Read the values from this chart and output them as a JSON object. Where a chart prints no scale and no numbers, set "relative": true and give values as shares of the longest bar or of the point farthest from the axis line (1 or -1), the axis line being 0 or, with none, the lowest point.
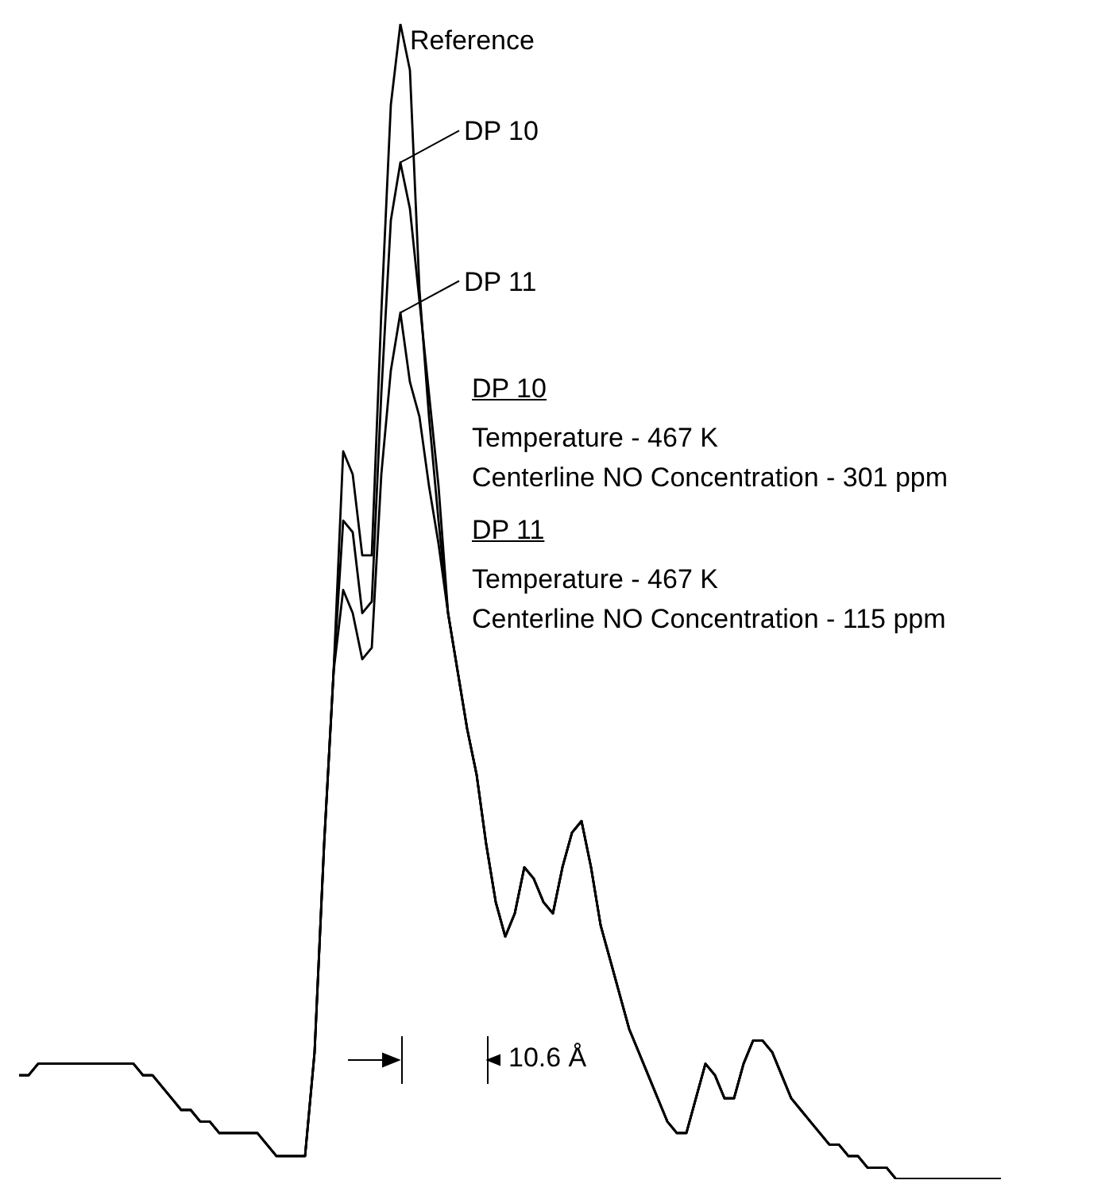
{
  "chart_data": {
    "type": "line",
    "relative": true,
    "categories": [
      null,
      null,
      null,
      null,
      null,
      null,
      null,
      null,
      null,
      null,
      null,
      null,
      null,
      null,
      null,
      null,
      null,
      null,
      null,
      null,
      null,
      null,
      null,
      null,
      null,
      null,
      null,
      null,
      null,
      null,
      null,
      null,
      null,
      null,
      null,
      null,
      null,
      null,
      null,
      null,
      null,
      null,
      null,
      null,
      null,
      null,
      null,
      null,
      null,
      null,
      null,
      null,
      null,
      null,
      null,
      null,
      null,
      null,
      null,
      null,
      null,
      null,
      null,
      null,
      null,
      null,
      null,
      null,
      null,
      null,
      null,
      null,
      null,
      null,
      null,
      null,
      null,
      null,
      null,
      null,
      null,
      null,
      null,
      null,
      null,
      null,
      null,
      null,
      null,
      null,
      null,
      null,
      null,
      null,
      null,
      null,
      null,
      null,
      null,
      null,
      null,
      null,
      null,
      null
    ],
    "series": [
      {
        "name": "Reference",
        "color": "#000000",
        "values": [
          0.09,
          0.09,
          0.1,
          0.1,
          0.1,
          0.1,
          0.1,
          0.1,
          0.1,
          0.1,
          0.1,
          0.1,
          0.1,
          0.09,
          0.09,
          0.08,
          0.07,
          0.06,
          0.06,
          0.05,
          0.05,
          0.04,
          0.04,
          0.04,
          0.04,
          0.04,
          0.03,
          0.02,
          0.02,
          0.02,
          0.02,
          0.11,
          0.29,
          0.44,
          0.63,
          0.61,
          0.54,
          0.54,
          0.75,
          0.93,
          1.0,
          0.96,
          0.77,
          0.66,
          0.57,
          0.49,
          0.44,
          0.39,
          0.35,
          0.29,
          0.24,
          0.21,
          0.23,
          0.27,
          0.26,
          0.24,
          0.23,
          0.27,
          0.3,
          0.31,
          0.27,
          0.22,
          0.19,
          0.16,
          0.13,
          0.11,
          0.09,
          0.07,
          0.05,
          0.04,
          0.04,
          0.07,
          0.1,
          0.09,
          0.07,
          0.07,
          0.1,
          0.12,
          0.12,
          0.11,
          0.09,
          0.07,
          0.06,
          0.05,
          0.04,
          0.03,
          0.03,
          0.02,
          0.02,
          0.01,
          0.01,
          0.01,
          0.0,
          0.0,
          0.0,
          0.0,
          0.0,
          0.0,
          0.0,
          0.0,
          0.0,
          0.0,
          0.0,
          0.0
        ]
      },
      {
        "name": "DP 10",
        "color": "#000000",
        "values": [
          0.09,
          0.09,
          0.1,
          0.1,
          0.1,
          0.1,
          0.1,
          0.1,
          0.1,
          0.1,
          0.1,
          0.1,
          0.1,
          0.09,
          0.09,
          0.08,
          0.07,
          0.06,
          0.06,
          0.05,
          0.05,
          0.04,
          0.04,
          0.04,
          0.04,
          0.04,
          0.03,
          0.02,
          0.02,
          0.02,
          0.02,
          0.11,
          0.29,
          0.44,
          0.57,
          0.56,
          0.49,
          0.5,
          0.68,
          0.83,
          0.88,
          0.84,
          0.76,
          0.68,
          0.6,
          0.49,
          0.44,
          0.39,
          0.35,
          0.29,
          0.24,
          0.21,
          0.23,
          0.27,
          0.26,
          0.24,
          0.23,
          0.27,
          0.3,
          0.31,
          0.27,
          0.22,
          0.19,
          0.16,
          0.13,
          0.11,
          0.09,
          0.07,
          0.05,
          0.04,
          0.04,
          0.07,
          0.1,
          0.09,
          0.07,
          0.07,
          0.1,
          0.12,
          0.12,
          0.11,
          0.09,
          0.07,
          0.06,
          0.05,
          0.04,
          0.03,
          0.03,
          0.02,
          0.02,
          0.01,
          0.01,
          0.01,
          0.0,
          0.0,
          0.0,
          0.0,
          0.0,
          0.0,
          0.0,
          0.0,
          0.0,
          0.0,
          0.0,
          0.0
        ]
      },
      {
        "name": "DP 11",
        "color": "#000000",
        "values": [
          0.09,
          0.09,
          0.1,
          0.1,
          0.1,
          0.1,
          0.1,
          0.1,
          0.1,
          0.1,
          0.1,
          0.1,
          0.1,
          0.09,
          0.09,
          0.08,
          0.07,
          0.06,
          0.06,
          0.05,
          0.05,
          0.04,
          0.04,
          0.04,
          0.04,
          0.04,
          0.03,
          0.02,
          0.02,
          0.02,
          0.02,
          0.11,
          0.29,
          0.44,
          0.51,
          0.49,
          0.45,
          0.46,
          0.61,
          0.7,
          0.75,
          0.69,
          0.66,
          0.6,
          0.55,
          0.49,
          0.44,
          0.39,
          0.35,
          0.29,
          0.24,
          0.21,
          0.23,
          0.27,
          0.26,
          0.24,
          0.23,
          0.27,
          0.3,
          0.31,
          0.27,
          0.22,
          0.19,
          0.16,
          0.13,
          0.11,
          0.09,
          0.07,
          0.05,
          0.04,
          0.04,
          0.07,
          0.1,
          0.09,
          0.07,
          0.07,
          0.1,
          0.12,
          0.12,
          0.11,
          0.09,
          0.07,
          0.06,
          0.05,
          0.04,
          0.03,
          0.03,
          0.02,
          0.02,
          0.01,
          0.01,
          0.01,
          0.0,
          0.0,
          0.0,
          0.0,
          0.0,
          0.0,
          0.0,
          0.0,
          0.0,
          0.0,
          0.0,
          0.0
        ]
      }
    ],
    "legend": "top",
    "annotations": [
      "DP 10",
      "Temperature - 467 K",
      "Centerline NO Concentration - 301 ppm",
      "DP 11",
      "Temperature - 467 K",
      "Centerline NO Concentration - 115 ppm",
      "10.6 Å"
    ]
  }
}
